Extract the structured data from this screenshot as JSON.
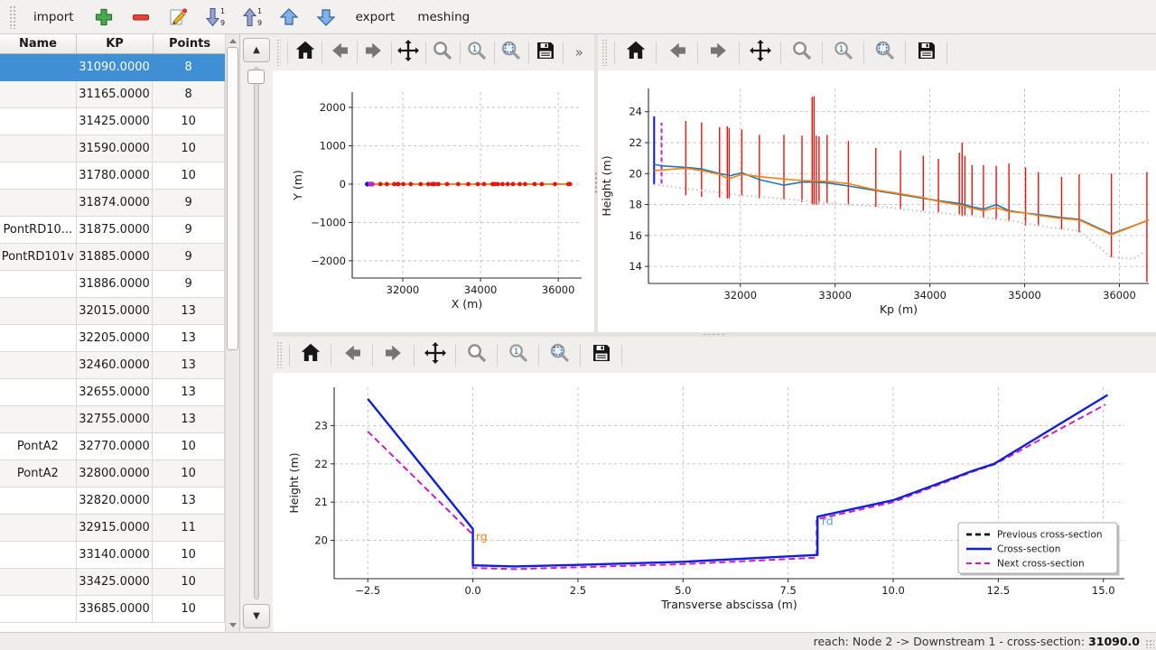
{
  "app_toolbar": {
    "import_label": "import",
    "export_label": "export",
    "meshing_label": "meshing"
  },
  "icons": {
    "up_arrow": "▲",
    "down_arrow": "▼"
  },
  "table": {
    "columns": [
      "Name",
      "KP",
      "Points"
    ],
    "selected_index": 0,
    "selected_color": "#3f8fd5",
    "rows": [
      [
        "",
        "31090.0000",
        "8"
      ],
      [
        "",
        "31165.0000",
        "8"
      ],
      [
        "",
        "31425.0000",
        "10"
      ],
      [
        "",
        "31590.0000",
        "10"
      ],
      [
        "",
        "31780.0000",
        "10"
      ],
      [
        "",
        "31874.0000",
        "9"
      ],
      [
        "PontRD10...",
        "31875.0000",
        "9"
      ],
      [
        "PontRD101v",
        "31885.0000",
        "9"
      ],
      [
        "",
        "31886.0000",
        "9"
      ],
      [
        "",
        "32015.0000",
        "13"
      ],
      [
        "",
        "32205.0000",
        "13"
      ],
      [
        "",
        "32460.0000",
        "13"
      ],
      [
        "",
        "32655.0000",
        "13"
      ],
      [
        "",
        "32755.0000",
        "13"
      ],
      [
        "PontA2",
        "32770.0000",
        "10"
      ],
      [
        "PontA2",
        "32800.0000",
        "10"
      ],
      [
        "",
        "32820.0000",
        "13"
      ],
      [
        "",
        "32915.0000",
        "11"
      ],
      [
        "",
        "33140.0000",
        "10"
      ],
      [
        "",
        "33425.0000",
        "10"
      ],
      [
        "",
        "33685.0000",
        "10"
      ]
    ]
  },
  "plot_toolbar": {
    "buttons": [
      "home",
      "back",
      "forward",
      "pan",
      "zoom",
      "zoom-1",
      "zoom-to-rect",
      "save"
    ],
    "overflow": "»"
  },
  "status_bar": {
    "text": "reach: Node 2 -> Downstream 1 - cross-section: ",
    "value": "31090.0"
  },
  "chart_data": [
    {
      "id": "xy_plot",
      "type": "line",
      "xlabel": "X (m)",
      "ylabel": "Y (m)",
      "xlim": [
        30700,
        36600
      ],
      "ylim": [
        -2450,
        2400
      ],
      "grid": true,
      "xticks": [
        [
          32000,
          "32000"
        ],
        [
          34000,
          "34000"
        ],
        [
          36000,
          "36000"
        ]
      ],
      "yticks": [
        [
          -2000,
          "−2000"
        ],
        [
          -1000,
          "−1000"
        ],
        [
          0,
          "0"
        ],
        [
          1000,
          "1000"
        ],
        [
          2000,
          "2000"
        ]
      ],
      "series": [
        {
          "name": "river-axis-line",
          "type": "line",
          "color": "#1f77b4",
          "width": 1.8,
          "x": [
            31090,
            36300
          ],
          "y": [
            0,
            0
          ]
        },
        {
          "name": "hydraulic-axis-line",
          "type": "line",
          "color": "#ff7f0e",
          "width": 1.8,
          "x": [
            31090,
            36300
          ],
          "y": [
            0,
            0
          ]
        },
        {
          "name": "cross-sections-markers",
          "type": "scatter",
          "color": "#e8150f",
          "r": 2.4,
          "y": 0,
          "x": [
            31425,
            31590,
            31780,
            31874,
            31886,
            32015,
            32205,
            32460,
            32655,
            32755,
            32800,
            32820,
            32915,
            33140,
            33425,
            33685,
            33930,
            34090,
            34310,
            34335,
            34365,
            34445,
            34565,
            34700,
            34835,
            35010,
            35145,
            35390,
            35575,
            35915,
            36260,
            36300
          ]
        },
        {
          "name": "current-section-marker",
          "type": "scatter",
          "color": "#1414e0",
          "r": 2.7,
          "y": 0,
          "x": [
            31090
          ]
        },
        {
          "name": "next-section-marker",
          "type": "scatter",
          "color": "#c81ec8",
          "r": 2.7,
          "y": 0,
          "x": [
            31165,
            31215
          ]
        }
      ]
    },
    {
      "id": "kp_profile",
      "type": "line",
      "xlabel": "Kp (m)",
      "ylabel": "Height (m)",
      "xlim": [
        31030,
        36310
      ],
      "ylim": [
        12.9,
        25.5
      ],
      "grid": true,
      "xticks": [
        [
          32000,
          "32000"
        ],
        [
          33000,
          "33000"
        ],
        [
          34000,
          "34000"
        ],
        [
          35000,
          "35000"
        ],
        [
          36000,
          "36000"
        ]
      ],
      "yticks": [
        [
          14,
          "14"
        ],
        [
          16,
          "16"
        ],
        [
          18,
          "18"
        ],
        [
          20,
          "20"
        ],
        [
          22,
          "22"
        ],
        [
          24,
          "24"
        ]
      ],
      "vline_groups": [
        {
          "name": "section-extent-lines",
          "color": "#e8150f",
          "width": 1.4,
          "items": [
            [
              31425,
              18.6,
              23.4
            ],
            [
              31590,
              18.5,
              23.3
            ],
            [
              31780,
              18.45,
              23.0
            ],
            [
              31862,
              18.4,
              23.05
            ],
            [
              31882,
              18.4,
              22.95
            ],
            [
              32015,
              18.6,
              22.85
            ],
            [
              32200,
              18.4,
              22.5
            ],
            [
              32460,
              18.35,
              22.5
            ],
            [
              32650,
              18.15,
              22.45
            ],
            [
              32758,
              18.05,
              24.95
            ],
            [
              32778,
              18.0,
              25.0
            ],
            [
              32802,
              18.0,
              22.45
            ],
            [
              32830,
              18.05,
              22.4
            ],
            [
              32915,
              18.1,
              22.5
            ],
            [
              33140,
              18.0,
              22.1
            ],
            [
              33430,
              17.85,
              21.65
            ],
            [
              33690,
              17.7,
              21.5
            ],
            [
              33930,
              17.6,
              21.15
            ],
            [
              34090,
              17.5,
              20.95
            ],
            [
              34310,
              17.35,
              21.35
            ],
            [
              34340,
              17.25,
              22.0
            ],
            [
              34370,
              17.3,
              21.15
            ],
            [
              34445,
              17.3,
              20.55
            ],
            [
              34565,
              17.15,
              20.55
            ],
            [
              34700,
              17.0,
              20.5
            ],
            [
              34835,
              16.9,
              20.65
            ],
            [
              35010,
              16.65,
              20.4
            ],
            [
              35145,
              16.6,
              20.1
            ],
            [
              35390,
              16.4,
              19.8
            ],
            [
              35575,
              16.2,
              19.95
            ],
            [
              35915,
              14.6,
              20.0
            ],
            [
              36290,
              13.0,
              20.1
            ]
          ]
        },
        {
          "name": "current-section-line",
          "color": "#1414e0",
          "width": 2.0,
          "items": [
            [
              31090,
              19.3,
              23.7
            ]
          ]
        },
        {
          "name": "next-section-line",
          "color": "#c81ec8",
          "width": 2.0,
          "dash": "5,3",
          "items": [
            [
              31168,
              19.35,
              23.3
            ]
          ]
        }
      ],
      "series": [
        {
          "name": "bottom-dotted-line",
          "type": "line",
          "color": "#c9c9c9",
          "width": 2.2,
          "dash": "1.5,3.2",
          "x": [
            31090,
            31600,
            32000,
            32500,
            33000,
            33500,
            34000,
            34400,
            34800,
            35200,
            35575,
            35915,
            36150,
            36310
          ],
          "y": [
            19.3,
            18.9,
            18.6,
            18.35,
            18.05,
            17.85,
            17.5,
            17.3,
            17.0,
            16.6,
            16.3,
            14.6,
            14.5,
            15.1
          ]
        },
        {
          "name": "left-bank-line",
          "type": "line",
          "color": "#1f77b4",
          "width": 1.6,
          "x": [
            31090,
            31165,
            31425,
            31590,
            31780,
            31874,
            31886,
            32015,
            32205,
            32460,
            32655,
            32770,
            32915,
            33140,
            33425,
            33685,
            33930,
            34090,
            34330,
            34445,
            34565,
            34700,
            34835,
            35010,
            35145,
            35390,
            35575,
            35915,
            36310
          ],
          "y": [
            20.6,
            20.5,
            20.4,
            20.3,
            20.0,
            19.9,
            19.85,
            20.05,
            19.6,
            19.25,
            19.45,
            19.45,
            19.4,
            19.2,
            18.9,
            18.65,
            18.4,
            18.25,
            18.05,
            17.85,
            17.7,
            18.0,
            17.6,
            17.45,
            17.35,
            17.15,
            17.05,
            16.1,
            17.0
          ]
        },
        {
          "name": "right-bank-line",
          "type": "line",
          "color": "#ff7f0e",
          "width": 1.6,
          "x": [
            31090,
            31425,
            31590,
            31780,
            31874,
            32015,
            32205,
            32460,
            32655,
            32915,
            33140,
            33425,
            33685,
            33930,
            34090,
            34330,
            34445,
            34565,
            34700,
            34835,
            35010,
            35145,
            35390,
            35575,
            35915,
            36310
          ],
          "y": [
            20.2,
            20.35,
            20.2,
            19.95,
            19.65,
            19.95,
            19.8,
            19.65,
            19.55,
            19.5,
            19.35,
            18.95,
            18.7,
            18.45,
            18.2,
            17.95,
            17.75,
            17.6,
            17.8,
            17.55,
            17.45,
            17.3,
            17.1,
            17.0,
            16.05,
            17.0
          ]
        }
      ]
    },
    {
      "id": "cross_section",
      "type": "line",
      "xlabel": "Transverse abscissa (m)",
      "ylabel": "Height (m)",
      "xlim": [
        -3.3,
        15.5
      ],
      "ylim": [
        19.0,
        24.0
      ],
      "grid": true,
      "xticks": [
        [
          -2.5,
          "−2.5"
        ],
        [
          0,
          "0.0"
        ],
        [
          2.5,
          "2.5"
        ],
        [
          5,
          "5.0"
        ],
        [
          7.5,
          "7.5"
        ],
        [
          10,
          "10.0"
        ],
        [
          12.5,
          "12.5"
        ],
        [
          15,
          "15.0"
        ]
      ],
      "yticks": [
        [
          20,
          "20"
        ],
        [
          21,
          "21"
        ],
        [
          22,
          "22"
        ],
        [
          23,
          "23"
        ]
      ],
      "series": [
        {
          "name": "next-cross-section",
          "type": "line",
          "color": "#c81ec8",
          "width": 2.0,
          "dash": "7,4",
          "x": [
            -2.5,
            0,
            0,
            1.0,
            2.5,
            5.0,
            8.18,
            8.18,
            10.0,
            11.9,
            12.4,
            15.05
          ],
          "y": [
            22.85,
            20.15,
            19.28,
            19.25,
            19.3,
            19.38,
            19.55,
            20.55,
            21.0,
            21.8,
            21.98,
            23.55
          ]
        },
        {
          "name": "cross-section",
          "type": "line",
          "color": "#0f1fdc",
          "width": 2.4,
          "x": [
            -2.5,
            0,
            0,
            1.0,
            2.5,
            5.0,
            8.2,
            8.2,
            10.0,
            11.9,
            12.4,
            15.1
          ],
          "y": [
            23.7,
            20.3,
            19.35,
            19.32,
            19.36,
            19.44,
            19.62,
            20.62,
            21.05,
            21.82,
            22.0,
            23.8
          ]
        }
      ],
      "annotations": [
        {
          "text": "rg",
          "x": 0.07,
          "y": 20.0,
          "color": "#ff7f0e"
        },
        {
          "text": "rd",
          "x": 8.3,
          "y": 20.4,
          "color": "#62a0cf"
        }
      ],
      "legend": {
        "entries": [
          {
            "label": "Previous cross-section",
            "color": "#111111",
            "dash": true,
            "width": 2.8
          },
          {
            "label": "Cross-section",
            "color": "#0f1fdc",
            "dash": false,
            "width": 2.4
          },
          {
            "label": "Next cross-section",
            "color": "#c81ec8",
            "dash": true,
            "width": 2.0
          }
        ]
      }
    }
  ]
}
